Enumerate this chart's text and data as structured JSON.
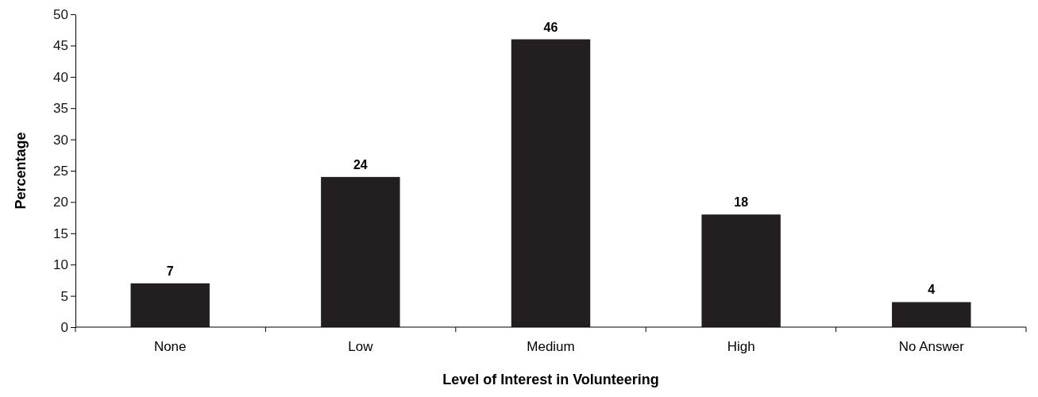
{
  "chart_data": {
    "type": "bar",
    "xlabel": "Level of Interest in Volunteering",
    "ylabel": "Percentage",
    "categories": [
      "None",
      "Low",
      "Medium",
      "High",
      "No Answer"
    ],
    "values": [
      7,
      24,
      46,
      18,
      4
    ],
    "color": "#231f20",
    "ylim": [
      0,
      50
    ],
    "yticks": [
      0,
      5,
      10,
      15,
      20,
      25,
      30,
      35,
      40,
      45,
      50
    ],
    "data_labels": true
  }
}
